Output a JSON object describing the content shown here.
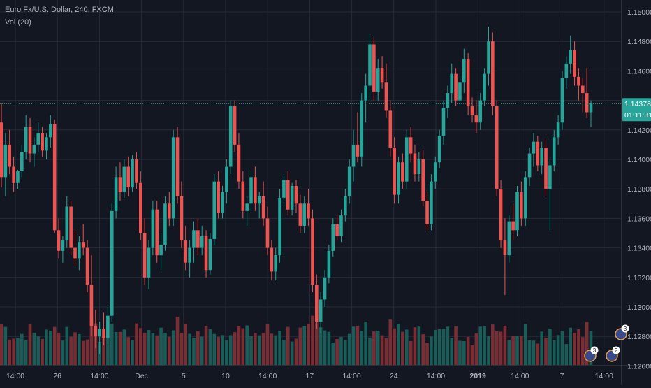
{
  "symbol": {
    "text": "Euro Fx/U.S. Dollar, 240, FXCM"
  },
  "indicator": {
    "text": "Vol (20)"
  },
  "colors": {
    "background": "#131722",
    "grid": "#262b38",
    "up": "#26a69a",
    "down": "#ef5350",
    "up_volume": "#1a5c57",
    "down_volume": "#7a2d33",
    "axis_text": "#b2b5be",
    "price_line": "#26a69a"
  },
  "chart_data": {
    "type": "candlestick",
    "title": "Euro Fx/U.S. Dollar, 240, FXCM",
    "y_axis": {
      "ticks": [
        "1.15000",
        "1.14800",
        "1.14600",
        "1.14400",
        "1.14200",
        "1.14000",
        "1.13800",
        "1.13600",
        "1.13400",
        "1.13200",
        "1.13000",
        "1.12800",
        "1.12600"
      ],
      "range": [
        1.1255,
        1.151
      ]
    },
    "x_axis": {
      "ticks": [
        "14:00",
        "26",
        "14:00",
        "Dec",
        "5",
        "10",
        "14:00",
        "17",
        "14:00",
        "24",
        "14:00",
        "2019",
        "14:00",
        "7",
        "14:00"
      ]
    },
    "last_price": "1.14378",
    "countdown": "01:11:31",
    "events": [
      "3",
      "2",
      "3"
    ],
    "candles": [
      [
        1.1425,
        1.1438,
        1.1381,
        1.1388
      ],
      [
        1.1388,
        1.1418,
        1.1375,
        1.141
      ],
      [
        1.141,
        1.142,
        1.139,
        1.1395
      ],
      [
        1.1395,
        1.1402,
        1.1378,
        1.1384
      ],
      [
        1.1384,
        1.1393,
        1.138,
        1.1392
      ],
      [
        1.1392,
        1.141,
        1.1388,
        1.1405
      ],
      [
        1.1405,
        1.143,
        1.14,
        1.1422
      ],
      [
        1.1422,
        1.1428,
        1.1398,
        1.1404
      ],
      [
        1.1404,
        1.1415,
        1.1395,
        1.141
      ],
      [
        1.141,
        1.1425,
        1.1405,
        1.1418
      ],
      [
        1.1418,
        1.1422,
        1.1402,
        1.1406
      ],
      [
        1.1406,
        1.1418,
        1.14,
        1.1415
      ],
      [
        1.1415,
        1.143,
        1.1408,
        1.1424
      ],
      [
        1.1424,
        1.1427,
        1.135,
        1.1352
      ],
      [
        1.1352,
        1.136,
        1.1333,
        1.1338
      ],
      [
        1.1338,
        1.1348,
        1.133,
        1.1345
      ],
      [
        1.1345,
        1.1375,
        1.134,
        1.1368
      ],
      [
        1.1368,
        1.1372,
        1.1335,
        1.134
      ],
      [
        1.134,
        1.1352,
        1.1328,
        1.1333
      ],
      [
        1.1333,
        1.1348,
        1.1325,
        1.1344
      ],
      [
        1.1344,
        1.1356,
        1.1335,
        1.134
      ],
      [
        1.134,
        1.1345,
        1.131,
        1.1315
      ],
      [
        1.1315,
        1.1335,
        1.128,
        1.1287
      ],
      [
        1.1287,
        1.1298,
        1.1272,
        1.128
      ],
      [
        1.128,
        1.129,
        1.1268,
        1.1285
      ],
      [
        1.1285,
        1.1296,
        1.1274,
        1.1279
      ],
      [
        1.1279,
        1.13,
        1.1275,
        1.1294
      ],
      [
        1.1294,
        1.137,
        1.129,
        1.1365
      ],
      [
        1.1365,
        1.1395,
        1.136,
        1.1388
      ],
      [
        1.1388,
        1.1398,
        1.1372,
        1.1378
      ],
      [
        1.1378,
        1.14,
        1.1374,
        1.1395
      ],
      [
        1.1395,
        1.1402,
        1.1375,
        1.1381
      ],
      [
        1.1381,
        1.1403,
        1.1378,
        1.14
      ],
      [
        1.14,
        1.1405,
        1.138,
        1.1384
      ],
      [
        1.1384,
        1.1392,
        1.1345,
        1.135
      ],
      [
        1.135,
        1.136,
        1.1315,
        1.132
      ],
      [
        1.132,
        1.1345,
        1.1312,
        1.134
      ],
      [
        1.134,
        1.1372,
        1.1335,
        1.1366
      ],
      [
        1.1366,
        1.1372,
        1.133,
        1.1335
      ],
      [
        1.1335,
        1.135,
        1.1325,
        1.1342
      ],
      [
        1.1342,
        1.1375,
        1.1338,
        1.137
      ],
      [
        1.137,
        1.1378,
        1.1355,
        1.136
      ],
      [
        1.136,
        1.142,
        1.1355,
        1.1415
      ],
      [
        1.1415,
        1.1422,
        1.137,
        1.1375
      ],
      [
        1.1375,
        1.1385,
        1.134,
        1.1345
      ],
      [
        1.1345,
        1.1355,
        1.1325,
        1.133
      ],
      [
        1.133,
        1.1345,
        1.132,
        1.134
      ],
      [
        1.134,
        1.1358,
        1.133,
        1.1352
      ],
      [
        1.1352,
        1.136,
        1.1335,
        1.134
      ],
      [
        1.134,
        1.1355,
        1.1335,
        1.1348
      ],
      [
        1.1348,
        1.1352,
        1.132,
        1.1325
      ],
      [
        1.1325,
        1.135,
        1.1322,
        1.1346
      ],
      [
        1.1346,
        1.139,
        1.1342,
        1.1385
      ],
      [
        1.1385,
        1.1392,
        1.136,
        1.1364
      ],
      [
        1.1364,
        1.1382,
        1.136,
        1.1378
      ],
      [
        1.1378,
        1.14,
        1.137,
        1.1395
      ],
      [
        1.1395,
        1.144,
        1.139,
        1.1436
      ],
      [
        1.1436,
        1.144,
        1.1405,
        1.141
      ],
      [
        1.141,
        1.1418,
        1.138,
        1.1385
      ],
      [
        1.1385,
        1.1392,
        1.136,
        1.1365
      ],
      [
        1.1365,
        1.1375,
        1.1355,
        1.137
      ],
      [
        1.137,
        1.1392,
        1.1365,
        1.1388
      ],
      [
        1.1388,
        1.1395,
        1.1365,
        1.137
      ],
      [
        1.137,
        1.1378,
        1.136,
        1.1375
      ],
      [
        1.1375,
        1.1385,
        1.1355,
        1.136
      ],
      [
        1.136,
        1.1368,
        1.1335,
        1.134
      ],
      [
        1.134,
        1.1345,
        1.1318,
        1.1324
      ],
      [
        1.1324,
        1.134,
        1.1318,
        1.1335
      ],
      [
        1.1335,
        1.138,
        1.133,
        1.1374
      ],
      [
        1.1374,
        1.139,
        1.137,
        1.1386
      ],
      [
        1.1386,
        1.1392,
        1.1362,
        1.1366
      ],
      [
        1.1366,
        1.1384,
        1.1362,
        1.1382
      ],
      [
        1.1382,
        1.1386,
        1.1364,
        1.137
      ],
      [
        1.137,
        1.1376,
        1.135,
        1.1355
      ],
      [
        1.1355,
        1.1375,
        1.135,
        1.137
      ],
      [
        1.137,
        1.138,
        1.1355,
        1.136
      ],
      [
        1.136,
        1.1366,
        1.131,
        1.1315
      ],
      [
        1.1315,
        1.1322,
        1.1285,
        1.129
      ],
      [
        1.129,
        1.131,
        1.1282,
        1.1305
      ],
      [
        1.1305,
        1.1325,
        1.13,
        1.132
      ],
      [
        1.132,
        1.1342,
        1.1316,
        1.1338
      ],
      [
        1.1338,
        1.136,
        1.1334,
        1.1356
      ],
      [
        1.1356,
        1.1362,
        1.1345,
        1.1348
      ],
      [
        1.1348,
        1.1366,
        1.1344,
        1.1362
      ],
      [
        1.1362,
        1.138,
        1.1358,
        1.1375
      ],
      [
        1.1375,
        1.14,
        1.137,
        1.1395
      ],
      [
        1.1395,
        1.142,
        1.1385,
        1.141
      ],
      [
        1.141,
        1.1432,
        1.1398,
        1.1402
      ],
      [
        1.1402,
        1.1445,
        1.1395,
        1.144
      ],
      [
        1.144,
        1.1458,
        1.1425,
        1.145
      ],
      [
        1.145,
        1.1485,
        1.144,
        1.1478
      ],
      [
        1.1478,
        1.1482,
        1.144,
        1.1446
      ],
      [
        1.1446,
        1.1468,
        1.144,
        1.1462
      ],
      [
        1.1462,
        1.147,
        1.1448,
        1.1452
      ],
      [
        1.1452,
        1.1465,
        1.1428,
        1.1433
      ],
      [
        1.1433,
        1.144,
        1.1402,
        1.1408
      ],
      [
        1.1408,
        1.1415,
        1.137,
        1.1376
      ],
      [
        1.1376,
        1.1402,
        1.137,
        1.1398
      ],
      [
        1.1398,
        1.1404,
        1.138,
        1.1385
      ],
      [
        1.1385,
        1.142,
        1.138,
        1.1415
      ],
      [
        1.1415,
        1.1422,
        1.1398,
        1.1404
      ],
      [
        1.1404,
        1.141,
        1.1385,
        1.139
      ],
      [
        1.139,
        1.1405,
        1.1385,
        1.14
      ],
      [
        1.14,
        1.1406,
        1.1368,
        1.1372
      ],
      [
        1.1372,
        1.1378,
        1.1352,
        1.1356
      ],
      [
        1.1356,
        1.139,
        1.1352,
        1.1385
      ],
      [
        1.1385,
        1.1402,
        1.138,
        1.1398
      ],
      [
        1.1398,
        1.142,
        1.1394,
        1.1416
      ],
      [
        1.1416,
        1.144,
        1.141,
        1.1435
      ],
      [
        1.1435,
        1.145,
        1.1428,
        1.1445
      ],
      [
        1.1445,
        1.1465,
        1.1438,
        1.1458
      ],
      [
        1.1458,
        1.1462,
        1.1436,
        1.144
      ],
      [
        1.144,
        1.1458,
        1.1436,
        1.1452
      ],
      [
        1.1452,
        1.1475,
        1.1445,
        1.1468
      ],
      [
        1.1468,
        1.1472,
        1.143,
        1.1436
      ],
      [
        1.1436,
        1.1442,
        1.1425,
        1.143
      ],
      [
        1.143,
        1.144,
        1.1418,
        1.1425
      ],
      [
        1.1425,
        1.1445,
        1.142,
        1.144
      ],
      [
        1.144,
        1.1462,
        1.1436,
        1.1458
      ],
      [
        1.1458,
        1.149,
        1.145,
        1.148
      ],
      [
        1.148,
        1.1486,
        1.143,
        1.1436
      ],
      [
        1.1436,
        1.144,
        1.1375,
        1.138
      ],
      [
        1.138,
        1.1386,
        1.134,
        1.1345
      ],
      [
        1.1345,
        1.136,
        1.1308,
        1.1335
      ],
      [
        1.1335,
        1.1362,
        1.133,
        1.1358
      ],
      [
        1.1358,
        1.137,
        1.1345,
        1.1352
      ],
      [
        1.1352,
        1.1382,
        1.1348,
        1.1378
      ],
      [
        1.1378,
        1.1385,
        1.1355,
        1.136
      ],
      [
        1.136,
        1.1392,
        1.1355,
        1.1388
      ],
      [
        1.1388,
        1.1408,
        1.1382,
        1.1404
      ],
      [
        1.1404,
        1.1418,
        1.1395,
        1.1412
      ],
      [
        1.1412,
        1.1416,
        1.1392,
        1.1396
      ],
      [
        1.1396,
        1.1412,
        1.139,
        1.1408
      ],
      [
        1.1408,
        1.1414,
        1.1375,
        1.138
      ],
      [
        1.138,
        1.14,
        1.1352,
        1.1396
      ],
      [
        1.1396,
        1.142,
        1.1392,
        1.1415
      ],
      [
        1.1415,
        1.143,
        1.141,
        1.1425
      ],
      [
        1.1425,
        1.146,
        1.142,
        1.1455
      ],
      [
        1.1455,
        1.147,
        1.1448,
        1.1465
      ],
      [
        1.1465,
        1.1484,
        1.1458,
        1.1474
      ],
      [
        1.1474,
        1.148,
        1.145,
        1.1456
      ],
      [
        1.1456,
        1.1462,
        1.144,
        1.145
      ],
      [
        1.145,
        1.1455,
        1.1432,
        1.1445
      ],
      [
        1.1445,
        1.1462,
        1.1428,
        1.1432
      ],
      [
        1.1432,
        1.144,
        1.1422,
        1.1438
      ]
    ],
    "volume_range": [
      0,
      115
    ]
  }
}
